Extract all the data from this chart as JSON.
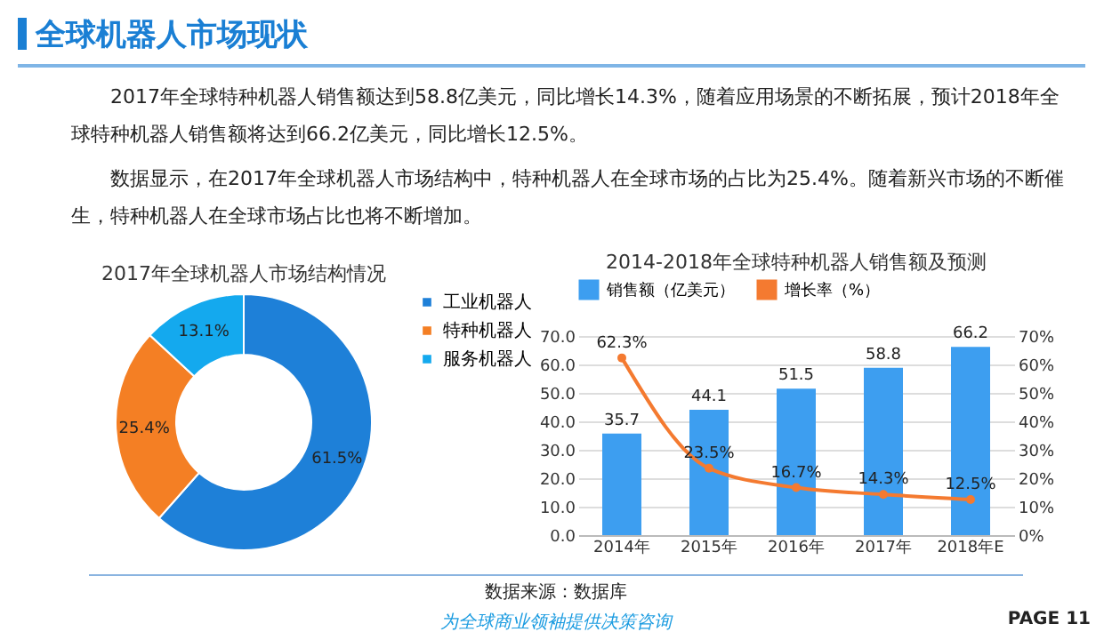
{
  "chart_data": [
    {
      "type": "other",
      "title": "全球机器人市场现状",
      "annotations": [
        "2017年全球特种机器人销售额达到58.8亿美元，同比增长14.3%，随着应用场景的不断拓展，预计2018年全球特种机器人销售额将达到66.2亿美元，同比增长12.5%。",
        "数据显示，在2017年全球机器人市场结构中，特种机器人在全球市场的占比为25.4%。随着新兴市场的不断催生，特种机器人在全球市场占比也将不断增加。",
        "数据来源：数据库",
        "为全球商业领袖提供决策咨询",
        "PAGE 11"
      ]
    },
    {
      "type": "donut",
      "title": "2017年全球机器人市场结构情况",
      "categories": [
        "工业机器人",
        "特种机器人",
        "服务机器人"
      ],
      "values": [
        61.5,
        25.4,
        13.1
      ],
      "colors": [
        "#1e80d8",
        "#f47f24",
        "#14a9ee"
      ],
      "value_labels": [
        "61.5%",
        "25.4%",
        "13.1%"
      ],
      "legend": "right"
    },
    {
      "type": "bar",
      "title": "2014-2018年全球特种机器人销售额及预测",
      "categories": [
        "2014年",
        "2015年",
        "2016年",
        "2017年",
        "2018年E"
      ],
      "series": [
        {
          "name": "销售额（亿美元）",
          "type": "bar",
          "color": "#3d9ef0",
          "values": [
            35.7,
            44.1,
            51.5,
            58.8,
            66.2
          ],
          "value_labels": [
            "35.7",
            "44.1",
            "51.5",
            "58.8",
            "66.2"
          ]
        },
        {
          "name": "增长率（%）",
          "type": "line",
          "axis": "y2",
          "color": "#f47a30",
          "values": [
            62.3,
            23.5,
            16.7,
            14.3,
            12.5
          ],
          "value_labels": [
            "62.3%",
            "23.5%",
            "16.7%",
            "14.3%",
            "12.5%"
          ]
        }
      ],
      "ylim": [
        0,
        70
      ],
      "yticks": [
        {
          "value": 0,
          "label": "0.0"
        },
        {
          "value": 10,
          "label": "10.0"
        },
        {
          "value": 20,
          "label": "20.0"
        },
        {
          "value": 30,
          "label": "30.0"
        },
        {
          "value": 40,
          "label": "40.0"
        },
        {
          "value": 50,
          "label": "50.0"
        },
        {
          "value": 60,
          "label": "60.0"
        },
        {
          "value": 70,
          "label": "70.0"
        }
      ],
      "y2lim": [
        0,
        70
      ],
      "y2ticks": [
        {
          "value": 0,
          "label": "0%"
        },
        {
          "value": 10,
          "label": "10%"
        },
        {
          "value": 20,
          "label": "20%"
        },
        {
          "value": 30,
          "label": "30%"
        },
        {
          "value": 40,
          "label": "40%"
        },
        {
          "value": 50,
          "label": "50%"
        },
        {
          "value": 60,
          "label": "60%"
        },
        {
          "value": 70,
          "label": "70%"
        }
      ],
      "grid": "y",
      "legend": "top",
      "marker": "circle"
    }
  ]
}
